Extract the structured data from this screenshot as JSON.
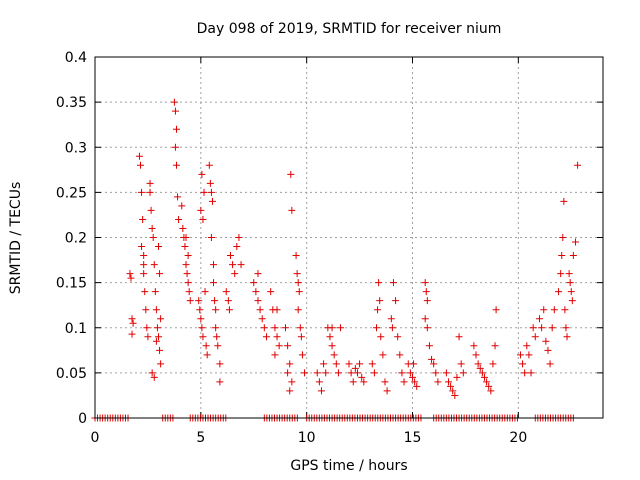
{
  "chart_data": {
    "type": "scatter",
    "title": "Day 098 of 2019, SRMTID for receiver nium",
    "xlabel": "GPS time / hours",
    "ylabel": "SRMTID / TECUs",
    "xlim": [
      0,
      24
    ],
    "ylim": [
      0,
      0.4
    ],
    "x_ticks": [
      0,
      5,
      10,
      15,
      20
    ],
    "x_tick_labels": [
      "0",
      "5",
      "10",
      "15",
      "20"
    ],
    "y_ticks": [
      0,
      0.05,
      0.1,
      0.15,
      0.2,
      0.25,
      0.3,
      0.35,
      0.4
    ],
    "y_tick_labels": [
      "0",
      "0.05",
      "0.1",
      "0.15",
      "0.2",
      "0.25",
      "0.3",
      "0.35",
      "0.4"
    ],
    "grid": true,
    "marker": "+",
    "color": "#e00000",
    "series": [
      {
        "name": "SRMTID",
        "points": [
          [
            1.65,
            0.16
          ],
          [
            1.7,
            0.155
          ],
          [
            1.75,
            0.11
          ],
          [
            1.8,
            0.105
          ],
          [
            1.75,
            0.093
          ],
          [
            2.1,
            0.29
          ],
          [
            2.15,
            0.28
          ],
          [
            2.2,
            0.25
          ],
          [
            2.25,
            0.22
          ],
          [
            2.3,
            0.18
          ],
          [
            2.3,
            0.17
          ],
          [
            2.35,
            0.14
          ],
          [
            2.4,
            0.12
          ],
          [
            2.45,
            0.1
          ],
          [
            2.5,
            0.09
          ],
          [
            2.2,
            0.19
          ],
          [
            2.3,
            0.16
          ],
          [
            2.6,
            0.26
          ],
          [
            2.65,
            0.23
          ],
          [
            2.7,
            0.21
          ],
          [
            2.75,
            0.2
          ],
          [
            2.8,
            0.17
          ],
          [
            2.85,
            0.14
          ],
          [
            2.9,
            0.12
          ],
          [
            2.95,
            0.1
          ],
          [
            2.7,
            0.05
          ],
          [
            2.8,
            0.045
          ],
          [
            3.0,
            0.19
          ],
          [
            3.05,
            0.16
          ],
          [
            3.1,
            0.11
          ],
          [
            3.0,
            0.09
          ],
          [
            3.05,
            0.075
          ],
          [
            2.9,
            0.085
          ],
          [
            3.1,
            0.06
          ],
          [
            2.6,
            0.25
          ],
          [
            3.75,
            0.35
          ],
          [
            3.8,
            0.34
          ],
          [
            3.85,
            0.32
          ],
          [
            3.8,
            0.3
          ],
          [
            3.85,
            0.28
          ],
          [
            3.9,
            0.245
          ],
          [
            3.95,
            0.22
          ],
          [
            4.1,
            0.235
          ],
          [
            4.15,
            0.21
          ],
          [
            4.2,
            0.2
          ],
          [
            4.25,
            0.19
          ],
          [
            4.3,
            0.17
          ],
          [
            4.35,
            0.16
          ],
          [
            4.4,
            0.15
          ],
          [
            4.45,
            0.14
          ],
          [
            4.5,
            0.13
          ],
          [
            4.4,
            0.18
          ],
          [
            4.3,
            0.2
          ],
          [
            4.9,
            0.13
          ],
          [
            4.95,
            0.12
          ],
          [
            5.0,
            0.11
          ],
          [
            5.05,
            0.1
          ],
          [
            5.1,
            0.09
          ],
          [
            5.0,
            0.23
          ],
          [
            5.1,
            0.22
          ],
          [
            5.05,
            0.27
          ],
          [
            5.15,
            0.25
          ],
          [
            5.2,
            0.14
          ],
          [
            5.25,
            0.08
          ],
          [
            5.3,
            0.07
          ],
          [
            5.4,
            0.28
          ],
          [
            5.45,
            0.26
          ],
          [
            5.5,
            0.25
          ],
          [
            5.55,
            0.24
          ],
          [
            5.5,
            0.2
          ],
          [
            5.6,
            0.17
          ],
          [
            5.6,
            0.15
          ],
          [
            5.65,
            0.13
          ],
          [
            5.7,
            0.12
          ],
          [
            5.7,
            0.1
          ],
          [
            5.75,
            0.09
          ],
          [
            5.8,
            0.08
          ],
          [
            5.9,
            0.06
          ],
          [
            5.9,
            0.04
          ],
          [
            6.2,
            0.14
          ],
          [
            6.3,
            0.13
          ],
          [
            6.35,
            0.12
          ],
          [
            6.4,
            0.18
          ],
          [
            6.5,
            0.17
          ],
          [
            6.6,
            0.16
          ],
          [
            6.7,
            0.19
          ],
          [
            6.8,
            0.2
          ],
          [
            6.9,
            0.17
          ],
          [
            7.5,
            0.15
          ],
          [
            7.6,
            0.14
          ],
          [
            7.7,
            0.13
          ],
          [
            7.8,
            0.12
          ],
          [
            7.9,
            0.11
          ],
          [
            8.0,
            0.1
          ],
          [
            8.1,
            0.09
          ],
          [
            7.7,
            0.16
          ],
          [
            8.3,
            0.14
          ],
          [
            8.4,
            0.12
          ],
          [
            8.5,
            0.1
          ],
          [
            8.6,
            0.09
          ],
          [
            8.7,
            0.08
          ],
          [
            8.6,
            0.12
          ],
          [
            8.5,
            0.07
          ],
          [
            9.0,
            0.1
          ],
          [
            9.1,
            0.08
          ],
          [
            9.2,
            0.06
          ],
          [
            9.3,
            0.04
          ],
          [
            9.2,
            0.03
          ],
          [
            9.1,
            0.05
          ],
          [
            9.25,
            0.27
          ],
          [
            9.3,
            0.23
          ],
          [
            9.5,
            0.18
          ],
          [
            9.55,
            0.16
          ],
          [
            9.6,
            0.15
          ],
          [
            9.65,
            0.14
          ],
          [
            9.6,
            0.12
          ],
          [
            9.7,
            0.1
          ],
          [
            9.75,
            0.09
          ],
          [
            9.8,
            0.07
          ],
          [
            9.9,
            0.05
          ],
          [
            10.5,
            0.05
          ],
          [
            10.6,
            0.04
          ],
          [
            10.7,
            0.03
          ],
          [
            10.8,
            0.06
          ],
          [
            10.9,
            0.05
          ],
          [
            11.0,
            0.1
          ],
          [
            11.1,
            0.09
          ],
          [
            11.2,
            0.08
          ],
          [
            11.3,
            0.07
          ],
          [
            11.4,
            0.06
          ],
          [
            11.5,
            0.05
          ],
          [
            11.2,
            0.1
          ],
          [
            11.6,
            0.1
          ],
          [
            12.0,
            0.06
          ],
          [
            12.1,
            0.05
          ],
          [
            12.2,
            0.04
          ],
          [
            12.3,
            0.055
          ],
          [
            12.4,
            0.05
          ],
          [
            12.5,
            0.06
          ],
          [
            12.6,
            0.045
          ],
          [
            12.7,
            0.04
          ],
          [
            13.1,
            0.06
          ],
          [
            13.2,
            0.05
          ],
          [
            13.3,
            0.1
          ],
          [
            13.35,
            0.12
          ],
          [
            13.4,
            0.15
          ],
          [
            13.45,
            0.13
          ],
          [
            13.5,
            0.09
          ],
          [
            13.6,
            0.07
          ],
          [
            13.7,
            0.04
          ],
          [
            13.8,
            0.03
          ],
          [
            14.0,
            0.11
          ],
          [
            14.05,
            0.1
          ],
          [
            14.1,
            0.15
          ],
          [
            14.2,
            0.13
          ],
          [
            14.3,
            0.09
          ],
          [
            14.4,
            0.07
          ],
          [
            14.5,
            0.05
          ],
          [
            14.6,
            0.04
          ],
          [
            14.8,
            0.06
          ],
          [
            14.9,
            0.05
          ],
          [
            15.0,
            0.045
          ],
          [
            15.1,
            0.04
          ],
          [
            15.2,
            0.035
          ],
          [
            15.05,
            0.06
          ],
          [
            15.6,
            0.15
          ],
          [
            15.65,
            0.14
          ],
          [
            15.7,
            0.13
          ],
          [
            15.6,
            0.11
          ],
          [
            15.7,
            0.1
          ],
          [
            15.8,
            0.08
          ],
          [
            15.9,
            0.065
          ],
          [
            16.0,
            0.06
          ],
          [
            16.1,
            0.05
          ],
          [
            16.2,
            0.04
          ],
          [
            16.6,
            0.05
          ],
          [
            16.7,
            0.04
          ],
          [
            16.8,
            0.035
          ],
          [
            16.9,
            0.03
          ],
          [
            17.0,
            0.025
          ],
          [
            17.1,
            0.045
          ],
          [
            17.2,
            0.09
          ],
          [
            17.3,
            0.06
          ],
          [
            17.4,
            0.05
          ],
          [
            17.9,
            0.08
          ],
          [
            18.0,
            0.07
          ],
          [
            18.1,
            0.06
          ],
          [
            18.2,
            0.055
          ],
          [
            18.3,
            0.05
          ],
          [
            18.4,
            0.045
          ],
          [
            18.5,
            0.04
          ],
          [
            18.6,
            0.035
          ],
          [
            18.7,
            0.03
          ],
          [
            18.8,
            0.06
          ],
          [
            18.9,
            0.08
          ],
          [
            18.95,
            0.12
          ],
          [
            20.1,
            0.07
          ],
          [
            20.2,
            0.06
          ],
          [
            20.3,
            0.05
          ],
          [
            20.4,
            0.08
          ],
          [
            20.5,
            0.07
          ],
          [
            20.6,
            0.05
          ],
          [
            20.7,
            0.1
          ],
          [
            20.8,
            0.09
          ],
          [
            21.0,
            0.11
          ],
          [
            21.1,
            0.1
          ],
          [
            21.2,
            0.12
          ],
          [
            21.3,
            0.085
          ],
          [
            21.4,
            0.075
          ],
          [
            21.5,
            0.06
          ],
          [
            21.6,
            0.1
          ],
          [
            21.7,
            0.12
          ],
          [
            21.9,
            0.14
          ],
          [
            22.0,
            0.16
          ],
          [
            22.05,
            0.18
          ],
          [
            22.1,
            0.2
          ],
          [
            22.15,
            0.24
          ],
          [
            22.2,
            0.12
          ],
          [
            22.25,
            0.1
          ],
          [
            22.3,
            0.09
          ],
          [
            22.4,
            0.16
          ],
          [
            22.45,
            0.15
          ],
          [
            22.5,
            0.14
          ],
          [
            22.55,
            0.13
          ],
          [
            22.6,
            0.18
          ],
          [
            22.7,
            0.195
          ],
          [
            22.8,
            0.28
          ]
        ],
        "baseline_segments": [
          [
            0.0,
            1.6
          ],
          [
            3.2,
            3.7
          ],
          [
            4.5,
            6.2
          ],
          [
            8.0,
            9.6
          ],
          [
            10.0,
            15.5
          ],
          [
            16.0,
            20.0
          ],
          [
            20.8,
            22.7
          ]
        ],
        "baseline_value": 0
      }
    ]
  }
}
